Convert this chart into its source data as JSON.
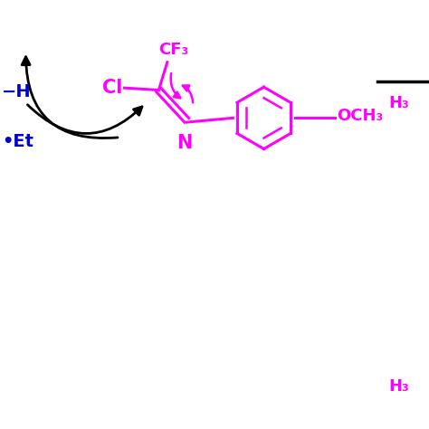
{
  "bg_color": "#ffffff",
  "magenta": "#FF00FF",
  "blue": "#0000CD",
  "black": "#000000",
  "figsize": [
    4.74,
    4.74
  ],
  "dpi": 100,
  "xlim": [
    0,
    10
  ],
  "ylim": [
    0,
    10
  ]
}
